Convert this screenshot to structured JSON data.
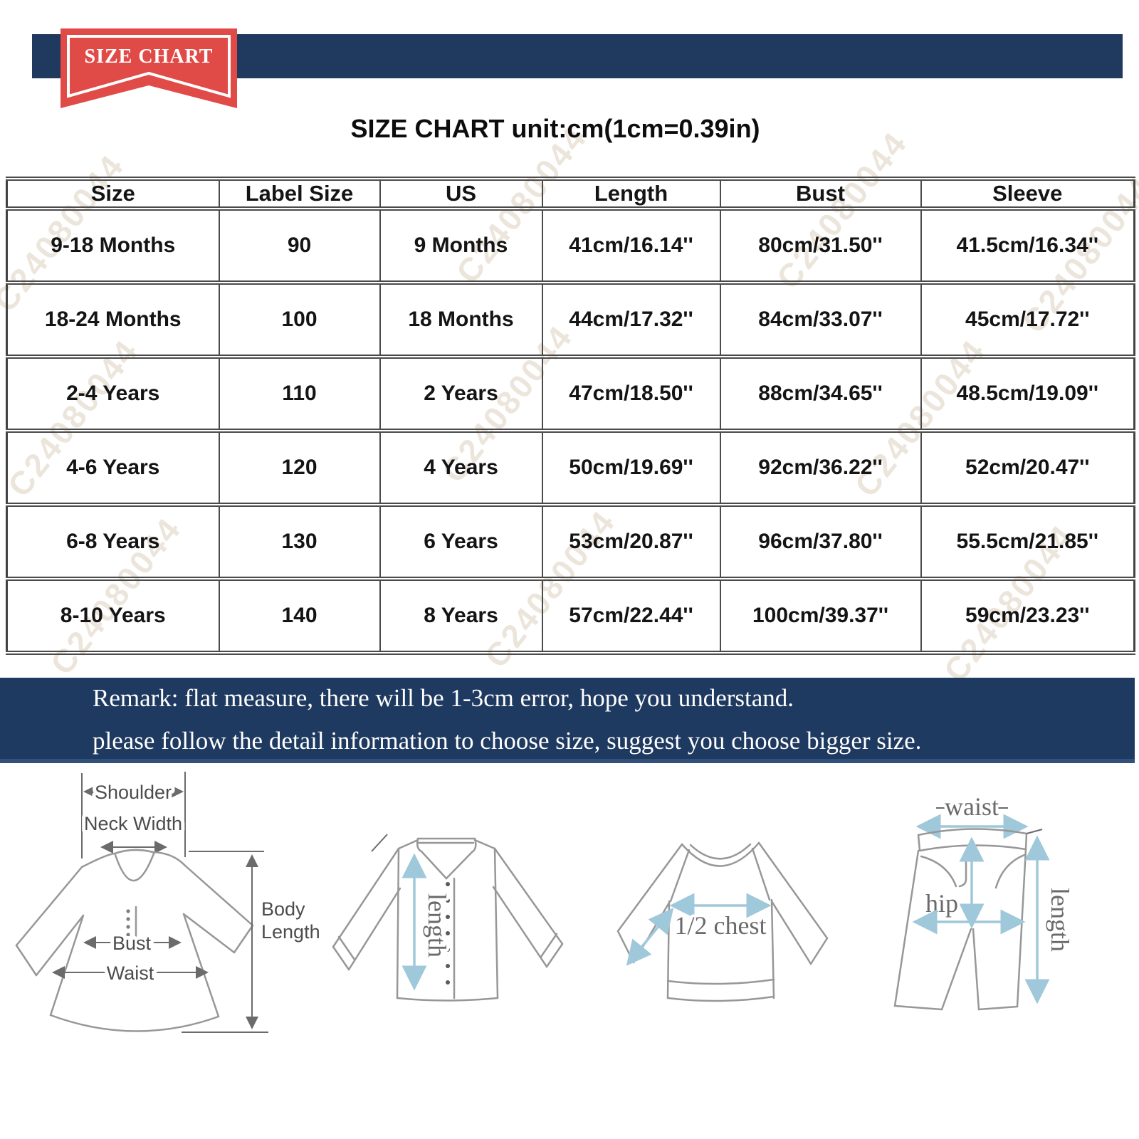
{
  "banner": {
    "ribbon_label": "SIZE CHART"
  },
  "title": "SIZE CHART unit:cm(1cm=0.39in)",
  "watermark": "C24080044",
  "table": {
    "headers": [
      "Size",
      "Label Size",
      "US",
      "Length",
      "Bust",
      "Sleeve"
    ],
    "rows": [
      [
        "9-18 Months",
        "90",
        "9 Months",
        "41cm/16.14''",
        "80cm/31.50''",
        "41.5cm/16.34''"
      ],
      [
        "18-24 Months",
        "100",
        "18 Months",
        "44cm/17.32''",
        "84cm/33.07''",
        "45cm/17.72''"
      ],
      [
        "2-4 Years",
        "110",
        "2 Years",
        "47cm/18.50''",
        "88cm/34.65''",
        "48.5cm/19.09''"
      ],
      [
        "4-6 Years",
        "120",
        "4 Years",
        "50cm/19.69''",
        "92cm/36.22''",
        "52cm/20.47''"
      ],
      [
        "6-8 Years",
        "130",
        "6 Years",
        "53cm/20.87''",
        "96cm/37.80''",
        "55.5cm/21.85''"
      ],
      [
        "8-10 Years",
        "140",
        "8 Years",
        "57cm/22.44''",
        "100cm/39.37''",
        "59cm/23.23''"
      ]
    ]
  },
  "remark": {
    "line1": "Remark: flat measure, there will be 1-3cm error, hope you understand.",
    "line2": "please follow the detail information to choose size, suggest you choose bigger size."
  },
  "diagrams": {
    "dress": {
      "shoulder": "Shoulder",
      "neck_width": "Neck Width",
      "bust": "Bust",
      "waist": "Waist",
      "body_length_line1": "Body",
      "body_length_line2": "Length"
    },
    "shirt": {
      "length": "length"
    },
    "top": {
      "half_chest": "1/2 chest"
    },
    "pants": {
      "waist": "waist",
      "hip": "hip",
      "length": "length"
    }
  },
  "colors": {
    "banner_navy": "#20395e",
    "remark_navy": "#1f3a60",
    "ribbon_red": "#e04a47",
    "arrow_blue": "#9fc8da",
    "watermark_tan": "#baa27c"
  }
}
